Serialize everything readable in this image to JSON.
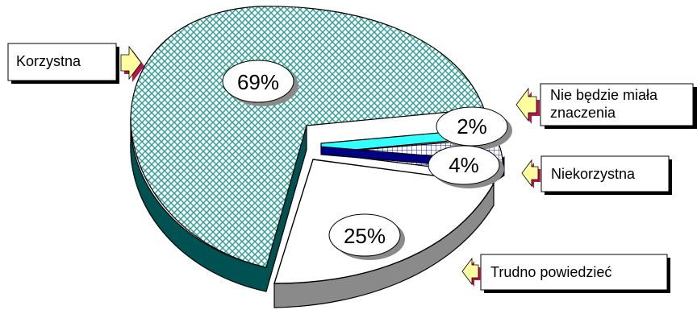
{
  "chart_data": {
    "type": "pie",
    "variant": "3d-exploded",
    "title": "",
    "categories": [
      "Korzystna",
      "Nie będzie miała znaczenia",
      "Niekorzystna",
      "Trudno powiedzieć"
    ],
    "values": [
      69,
      2,
      4,
      25
    ],
    "value_labels": [
      "69%",
      "2%",
      "4%",
      "25%"
    ],
    "legend": {
      "korzystna": "Korzystna",
      "nie_bedzie_line1": "Nie będzie miała",
      "nie_bedzie_line2": "znaczenia",
      "niekorzystna": "Niekorzystna",
      "trudno": "Trudno powiedzieć"
    },
    "colors": {
      "korzystna_top": "#5fb8ae",
      "korzystna_side": "#005151",
      "nie_bedzie_top": "#33ffff",
      "nie_bedzie_side": "#009999",
      "niekorzystna_top": "#000080",
      "niekorzystna_side": "#000055",
      "trudno_top": "#ffffff",
      "trudno_side": "#8a8a8a",
      "arrow": "#ffffa0",
      "arrow_shadow": "#b0184e"
    }
  }
}
